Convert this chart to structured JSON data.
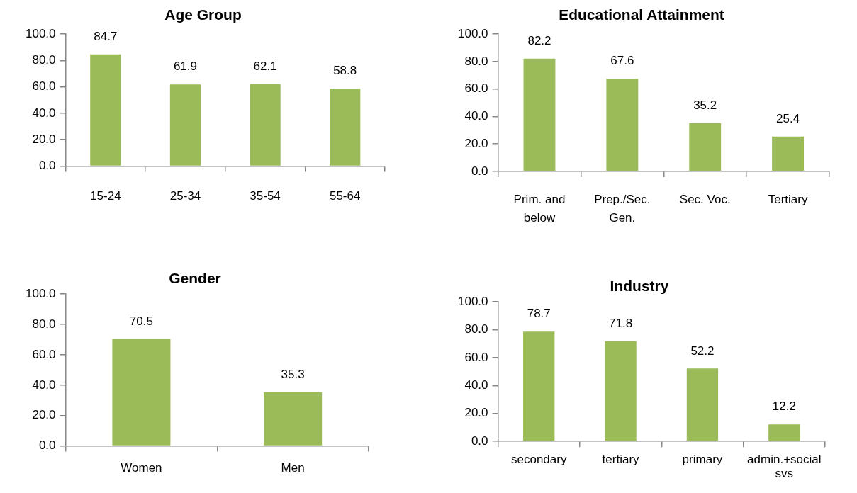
{
  "chart_data": [
    {
      "type": "bar",
      "title": "Age Group",
      "categories": [
        "15-24",
        "25-34",
        "35-54",
        "55-64"
      ],
      "values": [
        84.7,
        61.9,
        62.1,
        58.8
      ],
      "color": "#9bbb59",
      "ylim": [
        0,
        100
      ],
      "yticks": [
        {
          "value": 0,
          "label": "0.0"
        },
        {
          "value": 20,
          "label": "20.0"
        },
        {
          "value": 40,
          "label": "40.0"
        },
        {
          "value": 60,
          "label": "60.0"
        },
        {
          "value": 80,
          "label": "80.0"
        },
        {
          "value": 100,
          "label": "100.0"
        }
      ],
      "data_labels": true
    },
    {
      "type": "bar",
      "title": "Educational Attainment",
      "categories": [
        "Prim. and below",
        "Prep./Sec. Gen.",
        "Sec. Voc.",
        "Tertiary"
      ],
      "values": [
        82.2,
        67.6,
        35.2,
        25.4
      ],
      "color": "#9bbb59",
      "ylim": [
        0,
        100
      ],
      "yticks": [
        {
          "value": 0,
          "label": "0.0"
        },
        {
          "value": 20,
          "label": "20.0"
        },
        {
          "value": 40,
          "label": "40.0"
        },
        {
          "value": 60,
          "label": "60.0"
        },
        {
          "value": 80,
          "label": "80.0"
        },
        {
          "value": 100,
          "label": "100.0"
        }
      ],
      "data_labels": true
    },
    {
      "type": "bar",
      "title": "Gender",
      "categories": [
        "Women",
        "Men"
      ],
      "values": [
        70.5,
        35.3
      ],
      "color": "#9bbb59",
      "ylim": [
        0,
        100
      ],
      "yticks": [
        {
          "value": 0,
          "label": "0.0"
        },
        {
          "value": 20,
          "label": "20.0"
        },
        {
          "value": 40,
          "label": "40.0"
        },
        {
          "value": 60,
          "label": "60.0"
        },
        {
          "value": 80,
          "label": "80.0"
        },
        {
          "value": 100,
          "label": "100.0"
        }
      ],
      "data_labels": true
    },
    {
      "type": "bar",
      "title": "Industry",
      "categories": [
        "secondary",
        "tertiary",
        "primary",
        "admin.+social svs"
      ],
      "values": [
        78.7,
        71.8,
        52.2,
        12.2
      ],
      "color": "#9bbb59",
      "ylim": [
        0,
        100
      ],
      "yticks": [
        {
          "value": 0,
          "label": "0.0"
        },
        {
          "value": 20,
          "label": "20.0"
        },
        {
          "value": 40,
          "label": "40.0"
        },
        {
          "value": 60,
          "label": "60.0"
        },
        {
          "value": 80,
          "label": "80.0"
        },
        {
          "value": 100,
          "label": "100.0"
        }
      ],
      "data_labels": true
    }
  ]
}
